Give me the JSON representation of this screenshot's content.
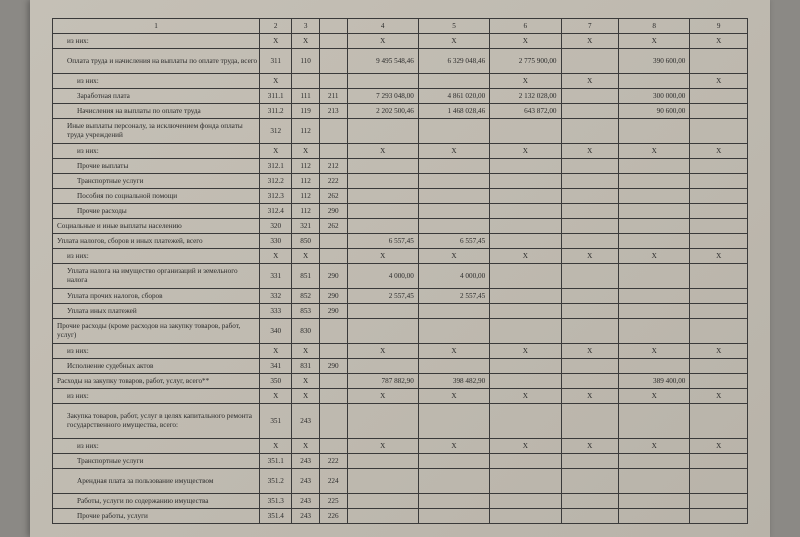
{
  "columns": [
    "1",
    "2",
    "3",
    "",
    "4",
    "5",
    "6",
    "7",
    "8",
    "9"
  ],
  "col_widths": [
    "180px",
    "28px",
    "24px",
    "24px",
    "62px",
    "62px",
    "62px",
    "50px",
    "62px",
    "50px"
  ],
  "X": "X",
  "rows": [
    {
      "cells": [
        "из них:",
        "X",
        "X",
        "",
        "X",
        "X",
        "X",
        "X",
        "X",
        "X"
      ],
      "indent": 1,
      "types": [
        "l",
        "x",
        "x",
        "",
        "x",
        "x",
        "x",
        "x",
        "x",
        "x"
      ]
    },
    {
      "cells": [
        "Оплата труда и начисления на выплаты по оплате труда, всего",
        "311",
        "110",
        "",
        "9 495 548,46",
        "6 329 048,46",
        "2 775 900,00",
        "",
        "390 600,00",
        ""
      ],
      "indent": 1,
      "types": [
        "l",
        "n",
        "n",
        "",
        "v",
        "v",
        "v",
        "",
        "v",
        ""
      ],
      "h": "tall"
    },
    {
      "cells": [
        "из них:",
        "X",
        "",
        "",
        "",
        "",
        "X",
        "X",
        "",
        "X"
      ],
      "indent": 2,
      "types": [
        "l",
        "x",
        "",
        "",
        "",
        "",
        "x",
        "x",
        "",
        "x"
      ]
    },
    {
      "cells": [
        "Заработная плата",
        "311.1",
        "111",
        "211",
        "7 293 048,00",
        "4 861 020,00",
        "2 132 028,00",
        "",
        "300 000,00",
        ""
      ],
      "indent": 2,
      "types": [
        "l",
        "n",
        "n",
        "n",
        "v",
        "v",
        "v",
        "",
        "v",
        ""
      ]
    },
    {
      "cells": [
        "Начисления на выплаты по оплате труда",
        "311.2",
        "119",
        "213",
        "2 202 500,46",
        "1 468 028,46",
        "643 872,00",
        "",
        "90 600,00",
        ""
      ],
      "indent": 2,
      "types": [
        "l",
        "n",
        "n",
        "n",
        "v",
        "v",
        "v",
        "",
        "v",
        ""
      ]
    },
    {
      "cells": [
        "Иные выплаты персоналу, за исключением фонда оплаты труда учреждений",
        "312",
        "112",
        "",
        "",
        "",
        "",
        "",
        "",
        ""
      ],
      "indent": 1,
      "types": [
        "l",
        "n",
        "n",
        "",
        "",
        "",
        "",
        "",
        "",
        ""
      ],
      "h": "tall"
    },
    {
      "cells": [
        "из них:",
        "X",
        "X",
        "",
        "X",
        "X",
        "X",
        "X",
        "X",
        "X"
      ],
      "indent": 2,
      "types": [
        "l",
        "x",
        "x",
        "",
        "x",
        "x",
        "x",
        "x",
        "x",
        "x"
      ]
    },
    {
      "cells": [
        "Прочие выплаты",
        "312.1",
        "112",
        "212",
        "",
        "",
        "",
        "",
        "",
        ""
      ],
      "indent": 2,
      "types": [
        "l",
        "n",
        "n",
        "n",
        "",
        "",
        "",
        "",
        "",
        ""
      ]
    },
    {
      "cells": [
        "Транспортные услуги",
        "312.2",
        "112",
        "222",
        "",
        "",
        "",
        "",
        "",
        ""
      ],
      "indent": 2,
      "types": [
        "l",
        "n",
        "n",
        "n",
        "",
        "",
        "",
        "",
        "",
        ""
      ]
    },
    {
      "cells": [
        "Пособия по социальной помощи",
        "312.3",
        "112",
        "262",
        "",
        "",
        "",
        "",
        "",
        ""
      ],
      "indent": 2,
      "types": [
        "l",
        "n",
        "n",
        "n",
        "",
        "",
        "",
        "",
        "",
        ""
      ]
    },
    {
      "cells": [
        "Прочие расходы",
        "312.4",
        "112",
        "290",
        "",
        "",
        "",
        "",
        "",
        ""
      ],
      "indent": 2,
      "types": [
        "l",
        "n",
        "n",
        "n",
        "",
        "",
        "",
        "",
        "",
        ""
      ]
    },
    {
      "cells": [
        "Социальные и иные выплаты населению",
        "320",
        "321",
        "262",
        "",
        "",
        "",
        "",
        "",
        ""
      ],
      "indent": 0,
      "types": [
        "l",
        "n",
        "n",
        "n",
        "",
        "",
        "",
        "",
        "",
        ""
      ]
    },
    {
      "cells": [
        "Уплата налогов, сборов и иных платежей, всего",
        "330",
        "850",
        "",
        "6 557,45",
        "6 557,45",
        "",
        "",
        "",
        ""
      ],
      "indent": 0,
      "types": [
        "l",
        "n",
        "n",
        "",
        "v",
        "v",
        "",
        "",
        "",
        ""
      ]
    },
    {
      "cells": [
        "из них:",
        "X",
        "X",
        "",
        "X",
        "X",
        "X",
        "X",
        "X",
        "X"
      ],
      "indent": 1,
      "types": [
        "l",
        "x",
        "x",
        "",
        "x",
        "x",
        "x",
        "x",
        "x",
        "x"
      ]
    },
    {
      "cells": [
        "Уплата налога на имущество организаций и земельного налога",
        "331",
        "851",
        "290",
        "4 000,00",
        "4 000,00",
        "",
        "",
        "",
        ""
      ],
      "indent": 1,
      "types": [
        "l",
        "n",
        "n",
        "n",
        "v",
        "v",
        "",
        "",
        "",
        ""
      ],
      "h": "tall"
    },
    {
      "cells": [
        "Уплата прочих налогов, сборов",
        "332",
        "852",
        "290",
        "2 557,45",
        "2 557,45",
        "",
        "",
        "",
        ""
      ],
      "indent": 1,
      "types": [
        "l",
        "n",
        "n",
        "n",
        "v",
        "v",
        "",
        "",
        "",
        ""
      ]
    },
    {
      "cells": [
        "Уплата иных платежей",
        "333",
        "853",
        "290",
        "",
        "",
        "",
        "",
        "",
        ""
      ],
      "indent": 1,
      "types": [
        "l",
        "n",
        "n",
        "n",
        "",
        "",
        "",
        "",
        "",
        ""
      ]
    },
    {
      "cells": [
        "Прочие расходы (кроме расходов на закупку товаров, работ, услуг)",
        "340",
        "830",
        "",
        "",
        "",
        "",
        "",
        "",
        ""
      ],
      "indent": 0,
      "types": [
        "l",
        "n",
        "n",
        "",
        "",
        "",
        "",
        "",
        "",
        ""
      ],
      "h": "tall"
    },
    {
      "cells": [
        "из них:",
        "X",
        "X",
        "",
        "X",
        "X",
        "X",
        "X",
        "X",
        "X"
      ],
      "indent": 1,
      "types": [
        "l",
        "x",
        "x",
        "",
        "x",
        "x",
        "x",
        "x",
        "x",
        "x"
      ]
    },
    {
      "cells": [
        "Исполнение судебных актов",
        "341",
        "831",
        "290",
        "",
        "",
        "",
        "",
        "",
        ""
      ],
      "indent": 1,
      "types": [
        "l",
        "n",
        "n",
        "n",
        "",
        "",
        "",
        "",
        "",
        ""
      ]
    },
    {
      "cells": [
        "Расходы на закупку товаров, работ, услуг, всего**",
        "350",
        "X",
        "",
        "787 882,90",
        "398 482,90",
        "",
        "",
        "389 400,00",
        ""
      ],
      "indent": 0,
      "types": [
        "l",
        "n",
        "x",
        "",
        "v",
        "v",
        "",
        "",
        "v",
        ""
      ]
    },
    {
      "cells": [
        "из них:",
        "X",
        "X",
        "",
        "X",
        "X",
        "X",
        "X",
        "X",
        "X"
      ],
      "indent": 1,
      "types": [
        "l",
        "x",
        "x",
        "",
        "x",
        "x",
        "x",
        "x",
        "x",
        "x"
      ]
    },
    {
      "cells": [
        "Закупка товаров, работ, услуг в целях капитального ремонта государственного имущества, всего:",
        "351",
        "243",
        "",
        "",
        "",
        "",
        "",
        "",
        ""
      ],
      "indent": 1,
      "types": [
        "l",
        "n",
        "n",
        "",
        "",
        "",
        "",
        "",
        "",
        ""
      ],
      "h": "taller"
    },
    {
      "cells": [
        "из них:",
        "X",
        "X",
        "",
        "X",
        "X",
        "X",
        "X",
        "X",
        "X"
      ],
      "indent": 2,
      "types": [
        "l",
        "x",
        "x",
        "",
        "x",
        "x",
        "x",
        "x",
        "x",
        "x"
      ]
    },
    {
      "cells": [
        "Транспортные услуги",
        "351.1",
        "243",
        "222",
        "",
        "",
        "",
        "",
        "",
        ""
      ],
      "indent": 2,
      "types": [
        "l",
        "n",
        "n",
        "n",
        "",
        "",
        "",
        "",
        "",
        ""
      ]
    },
    {
      "cells": [
        "Арендная плата за пользование имуществом",
        "351.2",
        "243",
        "224",
        "",
        "",
        "",
        "",
        "",
        ""
      ],
      "indent": 2,
      "types": [
        "l",
        "n",
        "n",
        "n",
        "",
        "",
        "",
        "",
        "",
        ""
      ],
      "h": "tall"
    },
    {
      "cells": [
        "Работы, услуги по содержанию имущества",
        "351.3",
        "243",
        "225",
        "",
        "",
        "",
        "",
        "",
        ""
      ],
      "indent": 2,
      "types": [
        "l",
        "n",
        "n",
        "n",
        "",
        "",
        "",
        "",
        "",
        ""
      ]
    },
    {
      "cells": [
        "Прочие работы, услуги",
        "351.4",
        "243",
        "226",
        "",
        "",
        "",
        "",
        "",
        ""
      ],
      "indent": 2,
      "types": [
        "l",
        "n",
        "n",
        "n",
        "",
        "",
        "",
        "",
        "",
        ""
      ]
    }
  ]
}
